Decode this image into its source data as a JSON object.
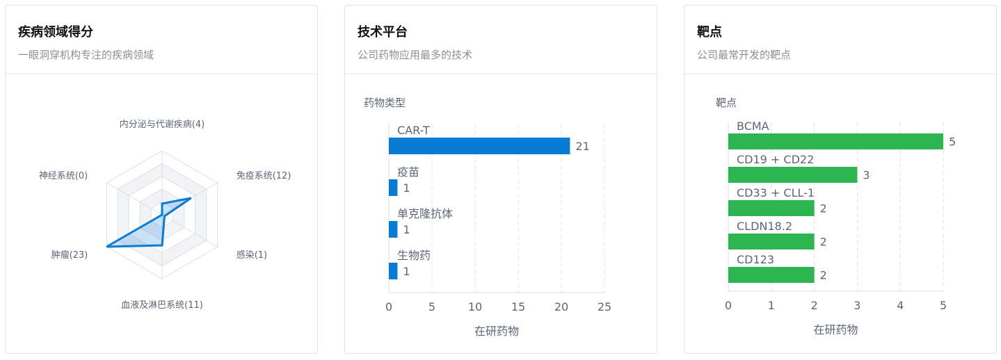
{
  "cards": [
    {
      "title": "疾病领域得分",
      "subtitle": "一眼洞穿机构专注的疾病领域"
    },
    {
      "title": "技术平台",
      "subtitle": "公司药物应用最多的技术"
    },
    {
      "title": "靶点",
      "subtitle": "公司最常开发的靶点"
    }
  ],
  "chart_data": [
    {
      "type": "radar",
      "indicators": [
        "内分泌与代谢疾病",
        "免疫系统",
        "感染",
        "血液及淋巴系统",
        "肿瘤",
        "神经系统"
      ],
      "labels": [
        "内分泌与代谢疾病(4)",
        "免疫系统(12)",
        "感染(1)",
        "血液及淋巴系统(11)",
        "肿瘤(23)",
        "神经系统(0)"
      ],
      "values": [
        4,
        12,
        1,
        11,
        23,
        0
      ],
      "max": 23,
      "color": "#0a7bd4"
    },
    {
      "type": "bar",
      "orientation": "horizontal",
      "ylabel": "药物类型",
      "xlabel": "在研药物",
      "categories": [
        "CAR-T",
        "疫苗",
        "单克隆抗体",
        "生物药"
      ],
      "values": [
        21,
        1,
        1,
        1
      ],
      "xlim": [
        0,
        25
      ],
      "ticks": [
        "0",
        "5",
        "10",
        "15",
        "20",
        "25"
      ],
      "color": "#0a7bd4",
      "grid": true
    },
    {
      "type": "bar",
      "orientation": "horizontal",
      "ylabel": "靶点",
      "xlabel": "在研药物",
      "categories": [
        "BCMA",
        "CD19 + CD22",
        "CD33 + CLL-1",
        "CLDN18.2",
        "CD123"
      ],
      "values": [
        5,
        3,
        2,
        2,
        2
      ],
      "xlim": [
        0,
        5
      ],
      "ticks": [
        "0",
        "1",
        "2",
        "3",
        "4",
        "5"
      ],
      "color": "#2db552",
      "grid": true
    }
  ]
}
